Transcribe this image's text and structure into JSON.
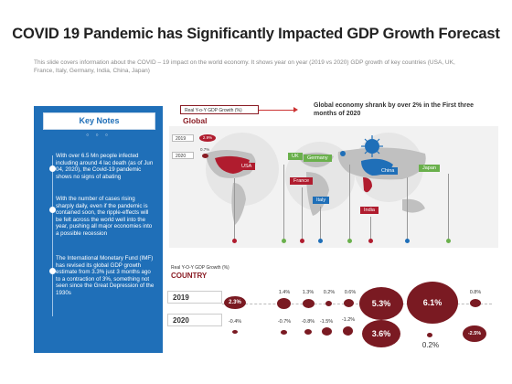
{
  "title": "COVID 19 Pandemic has Significantly Impacted GDP Growth Forecast",
  "subtitle": "This slide covers information about the COVID – 19 impact on the world economy. It shows year on year (2019 vs 2020) GDP growth of key countries (USA, UK, France, Italy, Germany, India, China, Japan)",
  "key_notes": {
    "heading": "Key Notes",
    "dots": "○ ○ ○",
    "notes": [
      "With over 6.5 Mn people infected including around 4 lac death (as of Jun 04, 2020), the Covid-19 pandemic shows no signs of abating",
      "With the number of cases rising sharply daily, even if the pandemic is contained soon, the ripple-effects will be felt across the world well into the year, pushing all major economies into a possible recession",
      "The International Monetary Fund (IMF) has revised its global GDP growth estimate from 3.3% just 3 months ago to a contraction of 3%, something not seen since the Great Depression of the 1930s"
    ]
  },
  "global": {
    "yoy_label": "Real Y-o-Y GDP Growth (%)",
    "label": "Global",
    "headline": "Global economy shrank by over 2% in the First three months of 2020",
    "rows": [
      {
        "year": "2019",
        "value": "2.9%"
      },
      {
        "year": "2020",
        "value": "0.7%"
      }
    ]
  },
  "map_countries": [
    "USA",
    "UK",
    "Germany",
    "France",
    "Italy",
    "China",
    "Japan",
    "India"
  ],
  "country_section": {
    "sub": "Real Y-O-Y GDP Growth (%)",
    "label": "COUNTRY",
    "year_2019": "2019",
    "year_2020": "2020",
    "values_2019": [
      "2.3%",
      "1.4%",
      "1.3%",
      "0.2%",
      "0.6%",
      "5.3%",
      "6.1%",
      "0.8%"
    ],
    "values_2020": [
      "-0.4%",
      "-0.7%",
      "-0.8%",
      "-1.5%",
      "-1.2%",
      "3.6%",
      "0.2%",
      "-2.5%"
    ]
  },
  "colors": {
    "brand_blue": "#1f6fb8",
    "maroon": "#7a1a22",
    "usa": "#b01c2e",
    "uk": "#6ab04c",
    "germany": "#6ab04c",
    "france": "#b01c2e",
    "italy": "#1f6fb8",
    "china": "#1f6fb8",
    "japan": "#6ab04c",
    "india": "#b01c2e"
  }
}
